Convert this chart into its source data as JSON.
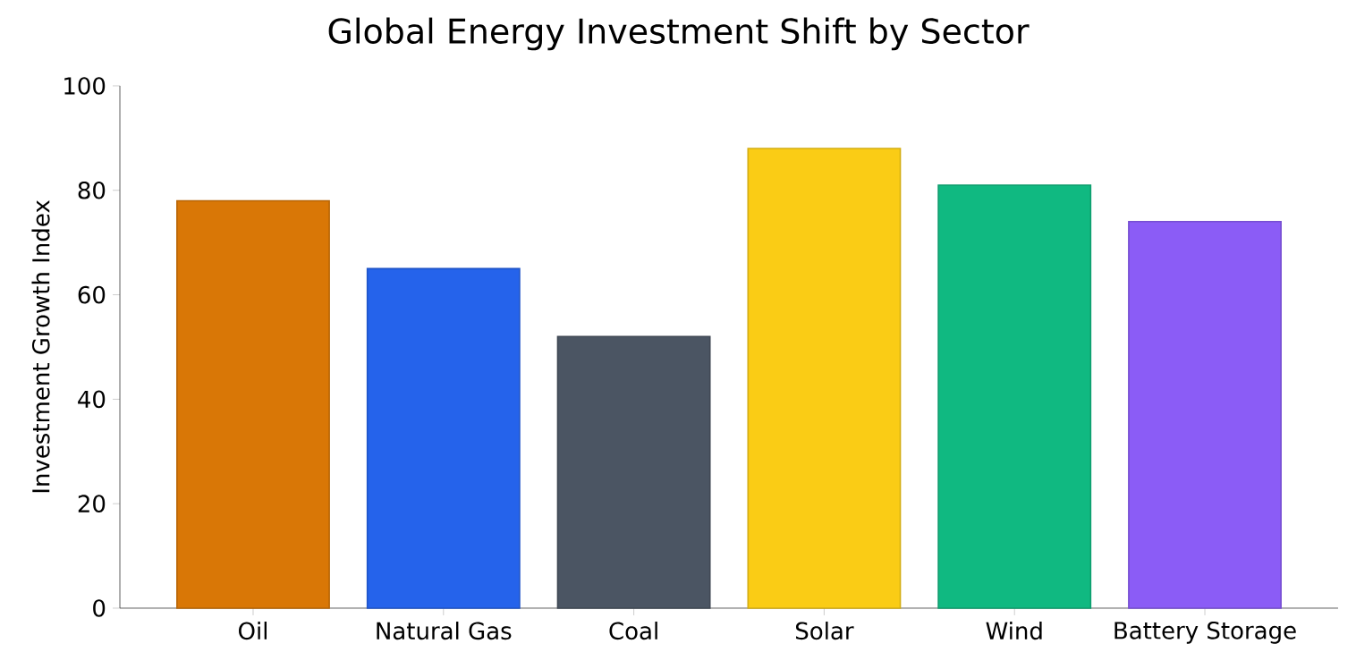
{
  "chart_data": {
    "type": "bar",
    "title": "Global Energy Investment Shift by Sector",
    "ylabel": "Investment Growth Index",
    "categories": [
      "Oil",
      "Natural Gas",
      "Coal",
      "Solar",
      "Wind",
      "Battery Storage"
    ],
    "values": [
      78,
      65,
      52,
      88,
      81,
      74
    ],
    "colors": [
      "#d97706",
      "#2563eb",
      "#4b5563",
      "#facc15",
      "#10b981",
      "#8b5cf6"
    ],
    "ylim": [
      0,
      100
    ],
    "yticks": [
      0,
      20,
      40,
      60,
      80,
      100
    ],
    "grid": false,
    "legend": false
  }
}
